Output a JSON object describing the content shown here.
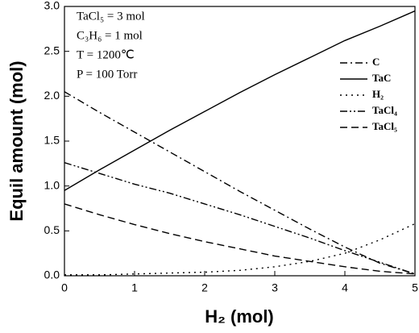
{
  "chart_data": {
    "type": "line",
    "x_label": "H₂ (mol)",
    "y_label": "Equil amount (mol)",
    "annotations": [
      "TaCl₅ = 3 mol",
      "C₃H₆ = 1 mol",
      "T = 1200℃",
      "P = 100 Torr"
    ],
    "x": [
      0,
      0.5,
      1,
      1.5,
      2,
      2.5,
      3,
      3.5,
      4,
      4.5,
      5
    ],
    "series": [
      {
        "name": "C",
        "color": "#000000",
        "dash": "dashdot",
        "values": [
          2.05,
          1.82,
          1.6,
          1.38,
          1.16,
          0.94,
          0.73,
          0.52,
          0.32,
          0.14,
          0.02
        ]
      },
      {
        "name": "TaC",
        "color": "#000000",
        "dash": "solid",
        "values": [
          0.95,
          1.18,
          1.4,
          1.62,
          1.83,
          2.04,
          2.24,
          2.43,
          2.62,
          2.78,
          2.95
        ]
      },
      {
        "name": "H₂",
        "color": "#000000",
        "dash": "dotted",
        "values": [
          0.01,
          0.01,
          0.02,
          0.03,
          0.04,
          0.06,
          0.1,
          0.16,
          0.25,
          0.4,
          0.58
        ]
      },
      {
        "name": "TaCl₄",
        "color": "#000000",
        "dash": "dashdotdot",
        "values": [
          1.26,
          1.14,
          1.02,
          0.92,
          0.8,
          0.68,
          0.55,
          0.42,
          0.28,
          0.15,
          0.02
        ]
      },
      {
        "name": "TaCl₅",
        "color": "#000000",
        "dash": "dashed",
        "values": [
          0.8,
          0.68,
          0.57,
          0.47,
          0.38,
          0.3,
          0.22,
          0.16,
          0.1,
          0.05,
          0.02
        ]
      }
    ],
    "xlim": [
      0,
      5
    ],
    "xticks": [
      0,
      1,
      2,
      3,
      4,
      5
    ],
    "ylim": [
      0,
      3
    ],
    "yticks": [
      {
        "value": 0,
        "label": "0.0"
      },
      0.5,
      {
        "value": 1,
        "label": "1.0"
      },
      1.5,
      {
        "value": 2,
        "label": "2.0"
      },
      2.5,
      {
        "value": 3,
        "label": "3.0"
      }
    ]
  }
}
